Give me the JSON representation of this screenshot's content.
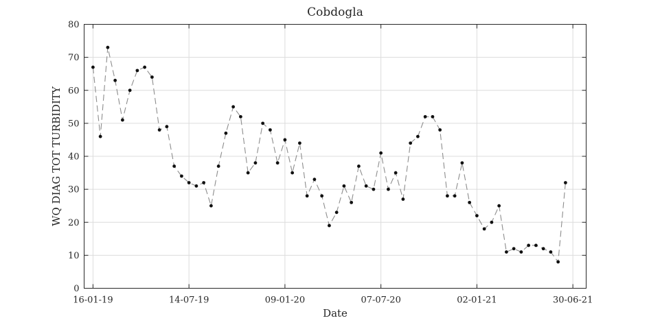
{
  "chart_data": {
    "type": "line",
    "title": "Cobdogla",
    "xlabel": "Date",
    "ylabel": "WQ DIAG TOT TURBIDITY",
    "ylim": [
      0,
      80
    ],
    "yticks": [
      0,
      10,
      20,
      30,
      40,
      50,
      60,
      70,
      80
    ],
    "xlim_index": [
      -1.2,
      66.8
    ],
    "xticks": [
      {
        "label": "16-01-19",
        "index": 0
      },
      {
        "label": "14-07-19",
        "index": 13
      },
      {
        "label": "09-01-20",
        "index": 26
      },
      {
        "label": "07-07-20",
        "index": 39
      },
      {
        "label": "02-01-21",
        "index": 52
      },
      {
        "label": "30-06-21",
        "index": 65
      }
    ],
    "grid": true,
    "line_style": "dashed",
    "series": [
      {
        "name": "Turbidity",
        "values": [
          67,
          46,
          73,
          63,
          51,
          60,
          66,
          67,
          64,
          48,
          49,
          37,
          34,
          32,
          31,
          32,
          25,
          37,
          47,
          55,
          52,
          35,
          38,
          50,
          48,
          38,
          45,
          35,
          44,
          28,
          33,
          28,
          19,
          23,
          31,
          26,
          37,
          31,
          30,
          41,
          30,
          35,
          27,
          44,
          46,
          52,
          52,
          48,
          28,
          28,
          38,
          26,
          22,
          18,
          20,
          25,
          11,
          12,
          11,
          13,
          13,
          12,
          11,
          8,
          32
        ]
      }
    ]
  }
}
